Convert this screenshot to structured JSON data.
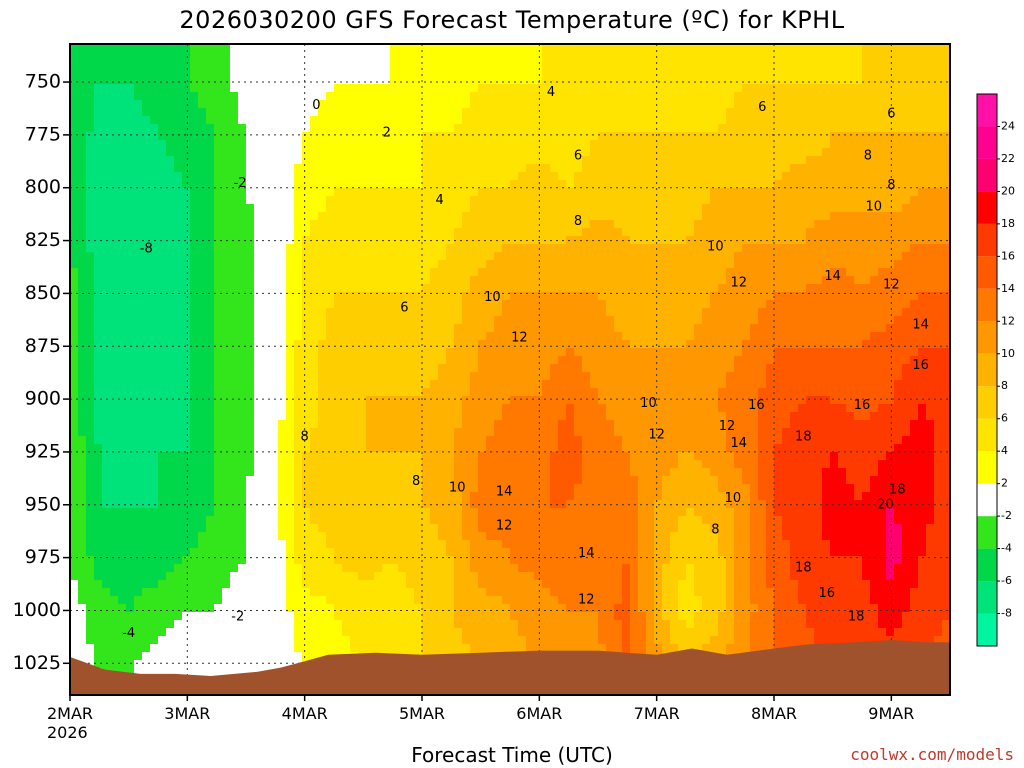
{
  "title": "2026030200 GFS Forecast Temperature (ºC) for KPHL",
  "credit": "coolwx.com/models",
  "chart_data": {
    "type": "heatmap",
    "title": "2026030200 GFS Forecast Temperature (ºC) for KPHL",
    "xlabel": "Forecast Time (UTC)",
    "ylabel": "",
    "x_ticks": [
      "2MAR",
      "3MAR",
      "4MAR",
      "5MAR",
      "6MAR",
      "7MAR",
      "8MAR",
      "9MAR"
    ],
    "x_year_label": "2026",
    "x_range_days": [
      0,
      7.5
    ],
    "y_ticks": [
      750,
      775,
      800,
      825,
      850,
      875,
      900,
      925,
      950,
      975,
      1000,
      1025
    ],
    "y_range_hpa": [
      732,
      1040
    ],
    "y_reversed": true,
    "grid": true,
    "colorbar": {
      "ticks": [
        -8,
        -6,
        -4,
        -2,
        2,
        4,
        6,
        8,
        10,
        12,
        14,
        16,
        18,
        20,
        22,
        24
      ],
      "bins": [
        {
          "lo": -10,
          "hi": -8,
          "color": "#00f5a0"
        },
        {
          "lo": -8,
          "hi": -6,
          "color": "#00e27a"
        },
        {
          "lo": -6,
          "hi": -4,
          "color": "#00d84a"
        },
        {
          "lo": -4,
          "hi": -2,
          "color": "#33e61c"
        },
        {
          "lo": -2,
          "hi": 2,
          "color": "#ffffff"
        },
        {
          "lo": 2,
          "hi": 4,
          "color": "#ffff00"
        },
        {
          "lo": 4,
          "hi": 6,
          "color": "#ffe400"
        },
        {
          "lo": 6,
          "hi": 8,
          "color": "#ffce00"
        },
        {
          "lo": 8,
          "hi": 10,
          "color": "#ffb200"
        },
        {
          "lo": 10,
          "hi": 12,
          "color": "#ff9800"
        },
        {
          "lo": 12,
          "hi": 14,
          "color": "#ff7800"
        },
        {
          "lo": 14,
          "hi": 16,
          "color": "#ff5a00"
        },
        {
          "lo": 16,
          "hi": 18,
          "color": "#ff3a00"
        },
        {
          "lo": 18,
          "hi": 20,
          "color": "#ff0000"
        },
        {
          "lo": 20,
          "hi": 22,
          "color": "#ff0070"
        },
        {
          "lo": 22,
          "hi": 24,
          "color": "#ff0090"
        },
        {
          "lo": 24,
          "hi": 26,
          "color": "#ff10a8"
        }
      ]
    },
    "temperature_profiles": [
      {
        "day": 0.0,
        "temps": [
          -4,
          -4,
          -4,
          -4,
          -4,
          -3,
          -3,
          -3,
          -2,
          -2,
          -2,
          -1,
          -1
        ]
      },
      {
        "day": 0.25,
        "temps": [
          -6,
          -6,
          -7,
          -7,
          -7,
          -7,
          -7,
          -7,
          -6,
          -6,
          -5,
          -3,
          -2
        ]
      },
      {
        "day": 0.5,
        "temps": [
          -6,
          -6,
          -7,
          -8,
          -8,
          -8,
          -8,
          -8,
          -7,
          -6,
          -5,
          -4,
          -2
        ]
      },
      {
        "day": 0.75,
        "temps": [
          -5,
          -5,
          -6,
          -7,
          -7,
          -7,
          -7,
          -7,
          -6,
          -6,
          -5,
          -3,
          -1
        ]
      },
      {
        "day": 1.0,
        "temps": [
          -4,
          -4,
          -5,
          -6,
          -6,
          -6,
          -6,
          -6,
          -6,
          -5,
          -4,
          -2,
          0
        ]
      },
      {
        "day": 1.25,
        "temps": [
          -3,
          -3,
          -4,
          -4,
          -4,
          -4,
          -4,
          -4,
          -4,
          -4,
          -3,
          -2,
          0
        ]
      },
      {
        "day": 1.5,
        "temps": [
          -1,
          -1,
          -2,
          -2,
          -3,
          -3,
          -3,
          -3,
          -3,
          -2,
          -2,
          0,
          1
        ]
      },
      {
        "day": 1.75,
        "temps": [
          0,
          0,
          0,
          0,
          0,
          0,
          1,
          1,
          1,
          1,
          1,
          1,
          1
        ]
      },
      {
        "day": 2.0,
        "temps": [
          1,
          1,
          2,
          3,
          4,
          4,
          5,
          5,
          6,
          6,
          5,
          3,
          2
        ]
      },
      {
        "day": 2.25,
        "temps": [
          1,
          2,
          3,
          4,
          5,
          6,
          7,
          7,
          7,
          7,
          6,
          4,
          3
        ]
      },
      {
        "day": 2.5,
        "temps": [
          1,
          2,
          3,
          4,
          5,
          6,
          7,
          8,
          8,
          7,
          7,
          5,
          4
        ]
      },
      {
        "day": 2.75,
        "temps": [
          2,
          2,
          3,
          4,
          5,
          6,
          7,
          8,
          8,
          7,
          6,
          5,
          5
        ]
      },
      {
        "day": 3.0,
        "temps": [
          2,
          3,
          4,
          4,
          5,
          6,
          7,
          8,
          8,
          8,
          7,
          6,
          6
        ]
      },
      {
        "day": 3.25,
        "temps": [
          3,
          3,
          4,
          5,
          6,
          7,
          8,
          9,
          10,
          9,
          8,
          8,
          7
        ]
      },
      {
        "day": 3.5,
        "temps": [
          3,
          4,
          5,
          6,
          7,
          9,
          10,
          11,
          12,
          13,
          11,
          9,
          8
        ]
      },
      {
        "day": 3.75,
        "temps": [
          3,
          4,
          5,
          6,
          8,
          10,
          11,
          12,
          13,
          13,
          12,
          10,
          9
        ]
      },
      {
        "day": 4.0,
        "temps": [
          4,
          4,
          5,
          7,
          8,
          10,
          11,
          12,
          13,
          14,
          13,
          11,
          10
        ]
      },
      {
        "day": 4.25,
        "temps": [
          4,
          4,
          5,
          6,
          8,
          10,
          12,
          14,
          15,
          14,
          13,
          12,
          11
        ]
      },
      {
        "day": 4.5,
        "temps": [
          4,
          5,
          6,
          7,
          9,
          10,
          11,
          12,
          13,
          13,
          12,
          12,
          11
        ]
      },
      {
        "day": 4.75,
        "temps": [
          4,
          5,
          6,
          7,
          8,
          9,
          10,
          11,
          12,
          13,
          14,
          15,
          15
        ]
      },
      {
        "day": 5.0,
        "temps": [
          4,
          5,
          6,
          7,
          8,
          9,
          10,
          11,
          11,
          10,
          9,
          9,
          11
        ]
      },
      {
        "day": 5.25,
        "temps": [
          4,
          5,
          6,
          7,
          8,
          9,
          10,
          11,
          10,
          8,
          6,
          5,
          8
        ]
      },
      {
        "day": 5.5,
        "temps": [
          5,
          5,
          6,
          8,
          9,
          10,
          11,
          12,
          11,
          9,
          7,
          7,
          10
        ]
      },
      {
        "day": 5.75,
        "temps": [
          5,
          6,
          7,
          8,
          10,
          11,
          12,
          13,
          13,
          11,
          11,
          11,
          12
        ]
      },
      {
        "day": 6.0,
        "temps": [
          5,
          6,
          7,
          8,
          10,
          12,
          14,
          15,
          16,
          16,
          15,
          14,
          14
        ]
      },
      {
        "day": 6.25,
        "temps": [
          5,
          6,
          7,
          9,
          10,
          12,
          14,
          16,
          17,
          17,
          17,
          16,
          15
        ]
      },
      {
        "day": 6.5,
        "temps": [
          5,
          6,
          8,
          9,
          11,
          13,
          14,
          16,
          18,
          19,
          18,
          17,
          16
        ]
      },
      {
        "day": 6.75,
        "temps": [
          6,
          6,
          8,
          9,
          11,
          12,
          14,
          15,
          17,
          18,
          18,
          17,
          16
        ]
      },
      {
        "day": 7.0,
        "temps": [
          6,
          6,
          8,
          9,
          11,
          13,
          15,
          16,
          18,
          20,
          21,
          19,
          17
        ]
      },
      {
        "day": 7.25,
        "temps": [
          6,
          7,
          8,
          10,
          12,
          14,
          16,
          18,
          19,
          19,
          18,
          17,
          16
        ]
      },
      {
        "day": 7.5,
        "temps": [
          6,
          7,
          8,
          10,
          12,
          14,
          16,
          17,
          17,
          17,
          16,
          16,
          15
        ]
      }
    ],
    "profile_levels_hpa": [
      732,
      750,
      775,
      800,
      825,
      850,
      875,
      900,
      925,
      950,
      975,
      1000,
      1030
    ],
    "contour_labels": [
      {
        "text": "0",
        "day": 2.1,
        "p": 761
      },
      {
        "text": "2",
        "day": 2.7,
        "p": 774
      },
      {
        "text": "-2",
        "day": 1.45,
        "p": 798
      },
      {
        "text": "-8",
        "day": 0.65,
        "p": 829
      },
      {
        "text": "4",
        "day": 4.1,
        "p": 755
      },
      {
        "text": "4",
        "day": 3.15,
        "p": 806
      },
      {
        "text": "6",
        "day": 2.85,
        "p": 857
      },
      {
        "text": "6",
        "day": 4.33,
        "p": 785
      },
      {
        "text": "6",
        "day": 5.9,
        "p": 762
      },
      {
        "text": "6",
        "day": 7.0,
        "p": 765
      },
      {
        "text": "8",
        "day": 6.8,
        "p": 785
      },
      {
        "text": "8",
        "day": 7.0,
        "p": 799
      },
      {
        "text": "8",
        "day": 4.33,
        "p": 816
      },
      {
        "text": "8",
        "day": 2.0,
        "p": 918
      },
      {
        "text": "8",
        "day": 2.95,
        "p": 939
      },
      {
        "text": "8",
        "day": 5.5,
        "p": 962
      },
      {
        "text": "10",
        "day": 6.85,
        "p": 809
      },
      {
        "text": "10",
        "day": 5.5,
        "p": 828
      },
      {
        "text": "10",
        "day": 3.6,
        "p": 852
      },
      {
        "text": "10",
        "day": 4.93,
        "p": 902
      },
      {
        "text": "10",
        "day": 3.3,
        "p": 942
      },
      {
        "text": "10",
        "day": 5.65,
        "p": 947
      },
      {
        "text": "12",
        "day": 5.7,
        "p": 845
      },
      {
        "text": "12",
        "day": 7.0,
        "p": 846
      },
      {
        "text": "12",
        "day": 3.83,
        "p": 871
      },
      {
        "text": "12",
        "day": 5.0,
        "p": 917
      },
      {
        "text": "12",
        "day": 5.6,
        "p": 913
      },
      {
        "text": "12",
        "day": 3.7,
        "p": 960
      },
      {
        "text": "12",
        "day": 4.4,
        "p": 995
      },
      {
        "text": "14",
        "day": 6.5,
        "p": 842
      },
      {
        "text": "14",
        "day": 7.25,
        "p": 865
      },
      {
        "text": "14",
        "day": 3.7,
        "p": 944
      },
      {
        "text": "14",
        "day": 4.4,
        "p": 973
      },
      {
        "text": "14",
        "day": 5.7,
        "p": 921
      },
      {
        "text": "16",
        "day": 5.85,
        "p": 903
      },
      {
        "text": "16",
        "day": 6.75,
        "p": 903
      },
      {
        "text": "16",
        "day": 7.25,
        "p": 884
      },
      {
        "text": "16",
        "day": 6.45,
        "p": 992
      },
      {
        "text": "18",
        "day": 6.25,
        "p": 918
      },
      {
        "text": "18",
        "day": 6.25,
        "p": 980
      },
      {
        "text": "18",
        "day": 7.05,
        "p": 943
      },
      {
        "text": "18",
        "day": 6.7,
        "p": 1003
      },
      {
        "text": "20",
        "day": 6.95,
        "p": 950
      },
      {
        "text": "-2",
        "day": 1.43,
        "p": 1003
      },
      {
        "text": "-4",
        "day": 0.5,
        "p": 1011
      }
    ]
  }
}
